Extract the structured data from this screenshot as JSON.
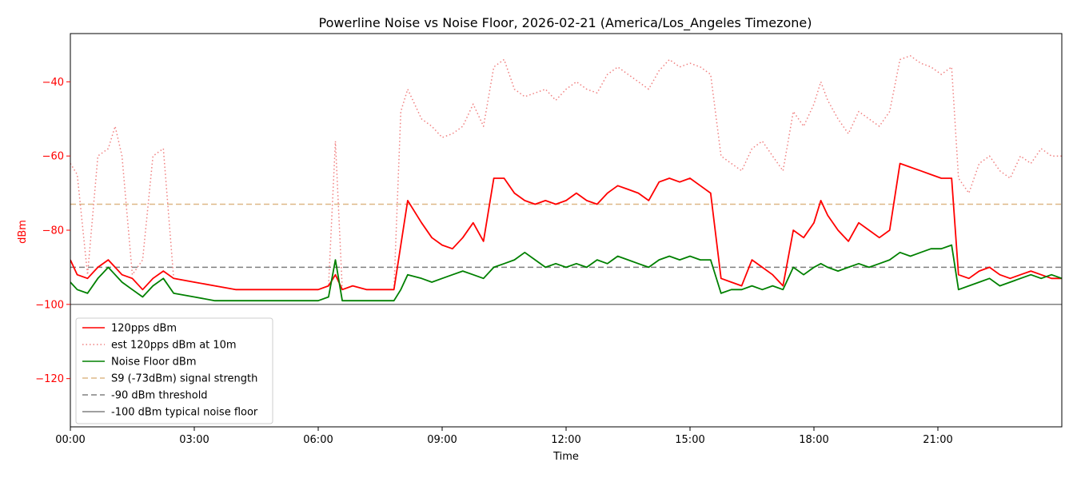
{
  "chart_data": {
    "type": "line",
    "title": "Powerline Noise vs Noise Floor, 2026-02-21 (America/Los_Angeles Timezone)",
    "xlabel": "Time",
    "ylabel": "dBm",
    "xlim": [
      "00:00",
      "24:00"
    ],
    "ylim": [
      -133,
      -27
    ],
    "x_ticks": [
      "00:00",
      "03:00",
      "06:00",
      "09:00",
      "12:00",
      "15:00",
      "18:00",
      "21:00"
    ],
    "y_ticks": [
      -40,
      -60,
      -80,
      -100,
      -120
    ],
    "y_tick_labels": [
      "−40",
      "−60",
      "−80",
      "−100",
      "−120"
    ],
    "legend_position": "lower-left",
    "grid": false,
    "series": [
      {
        "name": "120pps dBm",
        "color": "#ff0000",
        "style": "solid",
        "x": [
          "00:00",
          "00:10",
          "00:25",
          "00:40",
          "00:55",
          "01:05",
          "01:15",
          "01:30",
          "01:45",
          "02:00",
          "02:15",
          "02:30",
          "03:00",
          "03:30",
          "04:00",
          "04:30",
          "05:00",
          "05:30",
          "06:00",
          "06:15",
          "06:25",
          "06:35",
          "06:50",
          "07:10",
          "07:30",
          "07:50",
          "08:00",
          "08:10",
          "08:30",
          "08:45",
          "09:00",
          "09:15",
          "09:30",
          "09:45",
          "10:00",
          "10:15",
          "10:30",
          "10:45",
          "11:00",
          "11:15",
          "11:30",
          "11:45",
          "12:00",
          "12:15",
          "12:30",
          "12:45",
          "13:00",
          "13:15",
          "13:30",
          "13:45",
          "14:00",
          "14:15",
          "14:30",
          "14:45",
          "15:00",
          "15:15",
          "15:30",
          "15:45",
          "16:00",
          "16:15",
          "16:30",
          "16:45",
          "17:00",
          "17:15",
          "17:30",
          "17:45",
          "18:00",
          "18:10",
          "18:20",
          "18:35",
          "18:50",
          "19:05",
          "19:20",
          "19:35",
          "19:50",
          "20:05",
          "20:20",
          "20:35",
          "20:50",
          "21:05",
          "21:20",
          "21:30",
          "21:45",
          "22:00",
          "22:15",
          "22:30",
          "22:45",
          "23:00",
          "23:15",
          "23:30",
          "23:45",
          "24:00"
        ],
        "values": [
          -88,
          -92,
          -93,
          -90,
          -88,
          -90,
          -92,
          -93,
          -96,
          -93,
          -91,
          -93,
          -94,
          -95,
          -96,
          -96,
          -96,
          -96,
          -96,
          -95,
          -92,
          -96,
          -95,
          -96,
          -96,
          -96,
          -84,
          -72,
          -78,
          -82,
          -84,
          -85,
          -82,
          -78,
          -83,
          -66,
          -66,
          -70,
          -72,
          -73,
          -72,
          -73,
          -72,
          -70,
          -72,
          -73,
          -70,
          -68,
          -69,
          -70,
          -72,
          -67,
          -66,
          -67,
          -66,
          -68,
          -70,
          -93,
          -94,
          -95,
          -88,
          -90,
          -92,
          -95,
          -80,
          -82,
          -78,
          -72,
          -76,
          -80,
          -83,
          -78,
          -80,
          -82,
          -80,
          -62,
          -63,
          -64,
          -65,
          -66,
          -66,
          -92,
          -93,
          -91,
          -90,
          -92,
          -93,
          -92,
          -91,
          -92,
          -93,
          -93
        ]
      },
      {
        "name": "est 120pps dBm at 10m",
        "color": "#f08080",
        "style": "dotted",
        "x": [
          "00:00",
          "00:10",
          "00:25",
          "00:40",
          "00:55",
          "01:05",
          "01:15",
          "01:30",
          "01:45",
          "02:00",
          "02:15",
          "02:30",
          "03:00",
          "03:30",
          "04:00",
          "04:30",
          "05:00",
          "05:30",
          "06:00",
          "06:15",
          "06:25",
          "06:35",
          "06:50",
          "07:10",
          "07:30",
          "07:50",
          "08:00",
          "08:10",
          "08:30",
          "08:45",
          "09:00",
          "09:15",
          "09:30",
          "09:45",
          "10:00",
          "10:15",
          "10:30",
          "10:45",
          "11:00",
          "11:15",
          "11:30",
          "11:45",
          "12:00",
          "12:15",
          "12:30",
          "12:45",
          "13:00",
          "13:15",
          "13:30",
          "13:45",
          "14:00",
          "14:15",
          "14:30",
          "14:45",
          "15:00",
          "15:15",
          "15:30",
          "15:45",
          "16:00",
          "16:15",
          "16:30",
          "16:45",
          "17:00",
          "17:15",
          "17:30",
          "17:45",
          "18:00",
          "18:10",
          "18:20",
          "18:35",
          "18:50",
          "19:05",
          "19:20",
          "19:35",
          "19:50",
          "20:05",
          "20:20",
          "20:35",
          "20:50",
          "21:05",
          "21:20",
          "21:30",
          "21:45",
          "22:00",
          "22:15",
          "22:30",
          "22:45",
          "23:00",
          "23:15",
          "23:30",
          "23:45",
          "24:00"
        ],
        "values": [
          -62,
          -65,
          -92,
          -60,
          -58,
          -52,
          -60,
          -92,
          -88,
          -60,
          -58,
          -93,
          -94,
          -95,
          -96,
          -96,
          -96,
          -96,
          -96,
          -95,
          -56,
          -96,
          -95,
          -96,
          -96,
          -96,
          -48,
          -42,
          -50,
          -52,
          -55,
          -54,
          -52,
          -46,
          -52,
          -36,
          -34,
          -42,
          -44,
          -43,
          -42,
          -45,
          -42,
          -40,
          -42,
          -43,
          -38,
          -36,
          -38,
          -40,
          -42,
          -37,
          -34,
          -36,
          -35,
          -36,
          -38,
          -60,
          -62,
          -64,
          -58,
          -56,
          -60,
          -64,
          -48,
          -52,
          -46,
          -40,
          -45,
          -50,
          -54,
          -48,
          -50,
          -52,
          -48,
          -34,
          -33,
          -35,
          -36,
          -38,
          -36,
          -66,
          -70,
          -62,
          -60,
          -64,
          -66,
          -60,
          -62,
          -58,
          -60,
          -60
        ]
      },
      {
        "name": "Noise Floor dBm",
        "color": "#008000",
        "style": "solid",
        "x": [
          "00:00",
          "00:10",
          "00:25",
          "00:40",
          "00:55",
          "01:05",
          "01:15",
          "01:30",
          "01:45",
          "02:00",
          "02:15",
          "02:30",
          "03:00",
          "03:30",
          "04:00",
          "04:30",
          "05:00",
          "05:30",
          "06:00",
          "06:15",
          "06:25",
          "06:35",
          "06:50",
          "07:10",
          "07:30",
          "07:50",
          "08:00",
          "08:10",
          "08:30",
          "08:45",
          "09:00",
          "09:15",
          "09:30",
          "09:45",
          "10:00",
          "10:15",
          "10:30",
          "10:45",
          "11:00",
          "11:15",
          "11:30",
          "11:45",
          "12:00",
          "12:15",
          "12:30",
          "12:45",
          "13:00",
          "13:15",
          "13:30",
          "13:45",
          "14:00",
          "14:15",
          "14:30",
          "14:45",
          "15:00",
          "15:15",
          "15:30",
          "15:45",
          "16:00",
          "16:15",
          "16:30",
          "16:45",
          "17:00",
          "17:15",
          "17:30",
          "17:45",
          "18:00",
          "18:10",
          "18:20",
          "18:35",
          "18:50",
          "19:05",
          "19:20",
          "19:35",
          "19:50",
          "20:05",
          "20:20",
          "20:35",
          "20:50",
          "21:05",
          "21:20",
          "21:30",
          "21:45",
          "22:00",
          "22:15",
          "22:30",
          "22:45",
          "23:00",
          "23:15",
          "23:30",
          "23:45",
          "24:00"
        ],
        "values": [
          -94,
          -96,
          -97,
          -93,
          -90,
          -92,
          -94,
          -96,
          -98,
          -95,
          -93,
          -97,
          -98,
          -99,
          -99,
          -99,
          -99,
          -99,
          -99,
          -98,
          -88,
          -99,
          -99,
          -99,
          -99,
          -99,
          -96,
          -92,
          -93,
          -94,
          -93,
          -92,
          -91,
          -92,
          -93,
          -90,
          -89,
          -88,
          -86,
          -88,
          -90,
          -89,
          -90,
          -89,
          -90,
          -88,
          -89,
          -87,
          -88,
          -89,
          -90,
          -88,
          -87,
          -88,
          -87,
          -88,
          -88,
          -97,
          -96,
          -96,
          -95,
          -96,
          -95,
          -96,
          -90,
          -92,
          -90,
          -89,
          -90,
          -91,
          -90,
          -89,
          -90,
          -89,
          -88,
          -86,
          -87,
          -86,
          -85,
          -85,
          -84,
          -96,
          -95,
          -94,
          -93,
          -95,
          -94,
          -93,
          -92,
          -93,
          -92,
          -93
        ]
      },
      {
        "name": "S9 (-73dBm) signal strength",
        "color": "#deb887",
        "style": "dashed",
        "x": [
          "00:00",
          "24:00"
        ],
        "values": [
          -73,
          -73
        ]
      },
      {
        "name": "-90 dBm threshold",
        "color": "#808080",
        "style": "dashed",
        "x": [
          "00:00",
          "24:00"
        ],
        "values": [
          -90,
          -90
        ]
      },
      {
        "name": "-100 dBm typical noise floor",
        "color": "#808080",
        "style": "solid",
        "x": [
          "00:00",
          "24:00"
        ],
        "values": [
          -100,
          -100
        ]
      }
    ]
  }
}
